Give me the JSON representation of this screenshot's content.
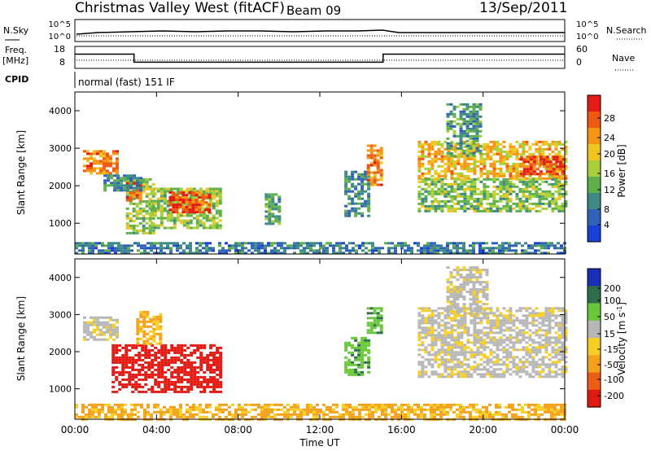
{
  "header": {
    "title": "Christmas Valley West (fitACF)",
    "beam": "Beam 09",
    "date": "13/Sep/2011"
  },
  "status_panel": {
    "nsky_label": "N.Sky",
    "nsearch_label": "N.Search",
    "freq_label": "Freq.",
    "freq_unit": "[MHz]",
    "nave_label": "Nave",
    "cpid_label": "CPID",
    "cpid_value": "normal (fast) 151 IF",
    "noise_ticks": [
      "10^5",
      "10^0"
    ],
    "freq_ticks": [
      "18",
      "8"
    ],
    "nave_ticks": [
      "60",
      "0"
    ],
    "freq_mhz_segments": [
      {
        "start_h": 0.0,
        "end_h": 2.9,
        "freq": 14.5
      },
      {
        "start_h": 2.9,
        "end_h": 15.1,
        "freq": 10.8
      },
      {
        "start_h": 15.1,
        "end_h": 24.0,
        "freq": 14.5
      }
    ]
  },
  "x_axis": {
    "label": "Time UT",
    "ticks": [
      "00:00",
      "04:00",
      "08:00",
      "12:00",
      "16:00",
      "20:00",
      "00:00"
    ]
  },
  "chart_data": [
    {
      "type": "heatmap",
      "name": "power",
      "ylabel": "Slant Range [km]",
      "yticks": [
        "1000",
        "2000",
        "3000",
        "4000"
      ],
      "xlim_hours": [
        0,
        24
      ],
      "ylim_km": [
        180,
        4500
      ],
      "colorbar": {
        "label": "Power [dB]",
        "ticks": [
          "4",
          "8",
          "12",
          "16",
          "20",
          "24",
          "28"
        ],
        "range": [
          0,
          30
        ]
      },
      "regions": [
        {
          "t0": 0.0,
          "t1": 24.0,
          "r0": 200,
          "r1": 500,
          "value": 6
        },
        {
          "t0": 0.4,
          "t1": 2.0,
          "r0": 2300,
          "r1": 2950,
          "value": 24
        },
        {
          "t0": 2.5,
          "t1": 3.8,
          "r0": 750,
          "r1": 2200,
          "value": 14
        },
        {
          "t0": 2.5,
          "t1": 3.2,
          "r0": 1600,
          "r1": 2100,
          "value": 26
        },
        {
          "t0": 3.7,
          "t1": 7.1,
          "r0": 900,
          "r1": 1950,
          "value": 14
        },
        {
          "t0": 4.6,
          "t1": 6.6,
          "r0": 1300,
          "r1": 1850,
          "value": 27
        },
        {
          "t0": 1.4,
          "t1": 3.2,
          "r0": 1900,
          "r1": 2300,
          "value": 8
        },
        {
          "t0": 9.3,
          "t1": 10.0,
          "r0": 1000,
          "r1": 1800,
          "value": 10
        },
        {
          "t0": 13.2,
          "t1": 14.4,
          "r0": 1200,
          "r1": 2400,
          "value": 8
        },
        {
          "t0": 14.3,
          "t1": 15.0,
          "r0": 2000,
          "r1": 3100,
          "value": 24
        },
        {
          "t0": 16.8,
          "t1": 24.0,
          "r0": 2200,
          "r1": 3200,
          "value": 20
        },
        {
          "t0": 16.8,
          "t1": 24.0,
          "r0": 1300,
          "r1": 2200,
          "value": 13
        },
        {
          "t0": 21.8,
          "t1": 24.0,
          "r0": 2300,
          "r1": 2800,
          "value": 27
        },
        {
          "t0": 18.2,
          "t1": 19.8,
          "r0": 2800,
          "r1": 4200,
          "value": 9
        }
      ]
    },
    {
      "type": "heatmap",
      "name": "velocity",
      "ylabel": "Slant Range [km]",
      "yticks": [
        "1000",
        "2000",
        "3000",
        "4000"
      ],
      "xlim_hours": [
        0,
        24
      ],
      "ylim_km": [
        180,
        4500
      ],
      "colorbar": {
        "label": "Velocity [m s^-1]",
        "ticks": [
          "200",
          "100",
          "50",
          "15",
          "-15",
          "-50",
          "-100",
          "-200"
        ],
        "range": [
          -250,
          250
        ]
      },
      "regions": [
        {
          "t0": 0.0,
          "t1": 24.0,
          "r0": 200,
          "r1": 600,
          "value": -60
        },
        {
          "t0": 0.4,
          "t1": 2.0,
          "r0": 2300,
          "r1": 2950,
          "value": 0
        },
        {
          "t0": 1.8,
          "t1": 7.1,
          "r0": 900,
          "r1": 2200,
          "value": -220
        },
        {
          "t0": 3.0,
          "t1": 4.2,
          "r0": 2200,
          "r1": 3100,
          "value": -60
        },
        {
          "t0": 13.2,
          "t1": 14.4,
          "r0": 1400,
          "r1": 2400,
          "value": 60
        },
        {
          "t0": 14.3,
          "t1": 15.0,
          "r0": 2500,
          "r1": 3200,
          "value": 60
        },
        {
          "t0": 16.8,
          "t1": 24.0,
          "r0": 1300,
          "r1": 3200,
          "value": 0
        },
        {
          "t0": 18.2,
          "t1": 20.2,
          "r0": 3000,
          "r1": 4300,
          "value": 0
        }
      ]
    }
  ]
}
